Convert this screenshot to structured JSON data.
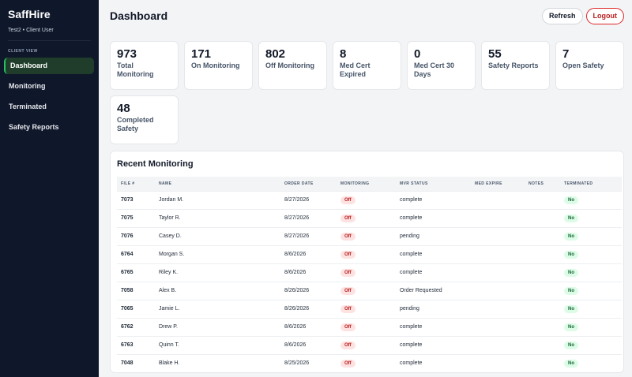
{
  "sidebar": {
    "brand": "SaffHire",
    "user": "Test2 • Client User",
    "section_label": "CLIENT VIEW",
    "items": [
      {
        "label": "Dashboard",
        "active": true
      },
      {
        "label": "Monitoring",
        "active": false
      },
      {
        "label": "Terminated",
        "active": false
      },
      {
        "label": "Safety Reports",
        "active": false
      }
    ]
  },
  "header": {
    "title": "Dashboard",
    "refresh_label": "Refresh",
    "logout_label": "Logout"
  },
  "stats": [
    {
      "value": "973",
      "label": "Total Monitoring"
    },
    {
      "value": "171",
      "label": "On Monitoring"
    },
    {
      "value": "802",
      "label": "Off Monitoring"
    },
    {
      "value": "8",
      "label": "Med Cert Expired"
    },
    {
      "value": "0",
      "label": "Med Cert 30 Days"
    },
    {
      "value": "55",
      "label": "Safety Reports"
    },
    {
      "value": "7",
      "label": "Open Safety"
    },
    {
      "value": "48",
      "label": "Completed Safety"
    }
  ],
  "recent": {
    "title": "Recent Monitoring",
    "columns": [
      "FILE #",
      "NAME",
      "ORDER DATE",
      "MONITORING",
      "MVR STATUS",
      "MED EXPIRE",
      "NOTES",
      "TERMINATED"
    ],
    "rows": [
      {
        "file": "7073",
        "name": "Jordan M.",
        "order_date": "8/27/2026",
        "monitoring": "Off",
        "mvr_status": "complete",
        "med_expire": "",
        "notes": "",
        "terminated": "No"
      },
      {
        "file": "7075",
        "name": "Taylor R.",
        "order_date": "8/27/2026",
        "monitoring": "Off",
        "mvr_status": "complete",
        "med_expire": "",
        "notes": "",
        "terminated": "No"
      },
      {
        "file": "7076",
        "name": "Casey D.",
        "order_date": "8/27/2026",
        "monitoring": "Off",
        "mvr_status": "pending",
        "med_expire": "",
        "notes": "",
        "terminated": "No"
      },
      {
        "file": "6764",
        "name": "Morgan S.",
        "order_date": "8/6/2026",
        "monitoring": "Off",
        "mvr_status": "complete",
        "med_expire": "",
        "notes": "",
        "terminated": "No"
      },
      {
        "file": "6765",
        "name": "Riley K.",
        "order_date": "8/6/2026",
        "monitoring": "Off",
        "mvr_status": "complete",
        "med_expire": "",
        "notes": "",
        "terminated": "No"
      },
      {
        "file": "7058",
        "name": "Alex B.",
        "order_date": "8/26/2026",
        "monitoring": "Off",
        "mvr_status": "Order Requested",
        "med_expire": "",
        "notes": "",
        "terminated": "No"
      },
      {
        "file": "7065",
        "name": "Jamie L.",
        "order_date": "8/26/2026",
        "monitoring": "Off",
        "mvr_status": "pending",
        "med_expire": "",
        "notes": "",
        "terminated": "No"
      },
      {
        "file": "6762",
        "name": "Drew P.",
        "order_date": "8/6/2026",
        "monitoring": "Off",
        "mvr_status": "complete",
        "med_expire": "",
        "notes": "",
        "terminated": "No"
      },
      {
        "file": "6763",
        "name": "Quinn T.",
        "order_date": "8/6/2026",
        "monitoring": "Off",
        "mvr_status": "complete",
        "med_expire": "",
        "notes": "",
        "terminated": "No"
      },
      {
        "file": "7048",
        "name": "Blake H.",
        "order_date": "8/25/2026",
        "monitoring": "Off",
        "mvr_status": "complete",
        "med_expire": "",
        "notes": "",
        "terminated": "No"
      }
    ]
  },
  "colors": {
    "sidebar_bg": "#0f172a",
    "active_accent": "#22c55e",
    "logout": "#dc2626",
    "pill_off_bg": "#fee2e2",
    "pill_no_bg": "#dcfce7"
  }
}
